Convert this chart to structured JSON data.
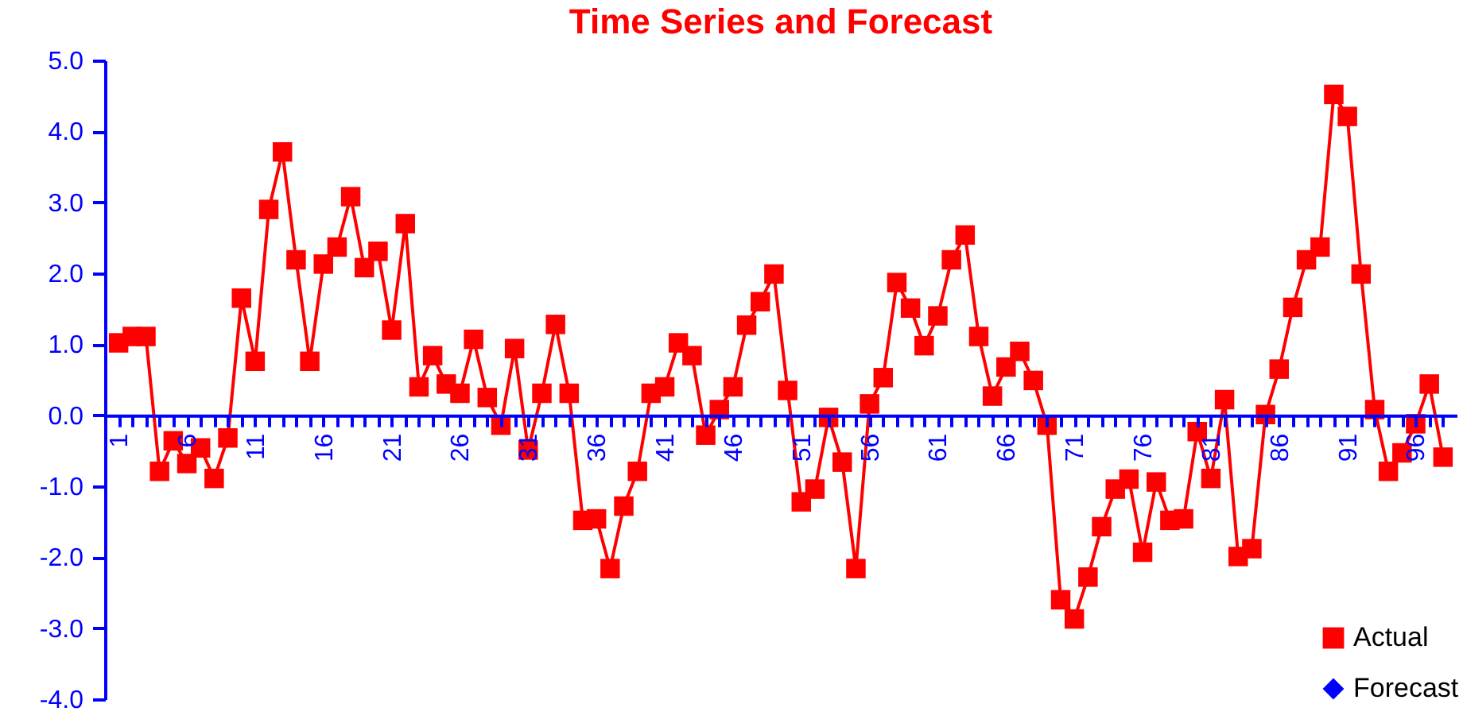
{
  "chart_data": {
    "type": "line",
    "title": "Time Series and Forecast",
    "categories": [
      "1",
      null,
      null,
      null,
      null,
      "6",
      null,
      null,
      null,
      null,
      "11",
      null,
      null,
      null,
      null,
      "16",
      null,
      null,
      null,
      null,
      "21",
      null,
      null,
      null,
      null,
      "26",
      null,
      null,
      null,
      null,
      "31",
      null,
      null,
      null,
      null,
      "36",
      null,
      null,
      null,
      null,
      "41",
      null,
      null,
      null,
      null,
      "46",
      null,
      null,
      null,
      null,
      "51",
      null,
      null,
      null,
      null,
      "56",
      null,
      null,
      null,
      null,
      "61",
      null,
      null,
      null,
      null,
      "66",
      null,
      null,
      null,
      null,
      "71",
      null,
      null,
      null,
      null,
      "76",
      null,
      null,
      null,
      null,
      "81",
      null,
      null,
      null,
      null,
      "86",
      null,
      null,
      null,
      null,
      "91",
      null,
      null,
      null,
      null,
      "96",
      null,
      null
    ],
    "series": [
      {
        "name": "Actual",
        "color": "#ff0000",
        "marker": "square",
        "values": [
          1.02,
          1.11,
          1.11,
          -0.79,
          -0.36,
          -0.68,
          -0.46,
          -0.89,
          -0.32,
          1.65,
          0.76,
          2.9,
          3.71,
          2.19,
          0.76,
          2.13,
          2.37,
          3.08,
          2.08,
          2.31,
          1.2,
          2.7,
          0.4,
          0.84,
          0.44,
          0.31,
          1.07,
          0.25,
          -0.14,
          0.94,
          -0.49,
          0.31,
          1.28,
          0.31,
          -1.48,
          -1.46,
          -2.16,
          -1.28,
          -0.79,
          0.31,
          0.4,
          1.02,
          0.84,
          -0.28,
          0.08,
          0.4,
          1.27,
          1.6,
          1.99,
          0.35,
          -1.22,
          -1.04,
          -0.03,
          -0.66,
          -2.16,
          0.16,
          0.53,
          1.87,
          1.51,
          0.98,
          1.4,
          2.19,
          2.54,
          1.11,
          0.27,
          0.68,
          0.9,
          0.49,
          -0.14,
          -2.6,
          -2.87,
          -2.28,
          -1.57,
          -1.04,
          -0.9,
          -1.93,
          -0.94,
          -1.48,
          -1.46,
          -0.23,
          -0.89,
          0.22,
          -1.99,
          -1.88,
          0.01,
          0.65,
          1.52,
          2.19,
          2.37,
          4.52,
          4.21,
          1.99,
          0.08,
          -0.79,
          -0.53,
          -0.12,
          0.44,
          -0.59
        ]
      },
      {
        "name": "Forecast",
        "color": "#0000ff",
        "marker": "diamond",
        "values": [
          null,
          null,
          null,
          null,
          null,
          null,
          null,
          null,
          null,
          null,
          null,
          null,
          null,
          null,
          null,
          null,
          null,
          null,
          null,
          null,
          null,
          null,
          null,
          null,
          null,
          null,
          null,
          null,
          null,
          null,
          null,
          null,
          null,
          null,
          null,
          null,
          null,
          null,
          null,
          null,
          null,
          null,
          null,
          null,
          null,
          null,
          null,
          null,
          null,
          null,
          null,
          null,
          null,
          null,
          null,
          null,
          null,
          null,
          null,
          null,
          null,
          null,
          null,
          null,
          null,
          null,
          null,
          null,
          null,
          null,
          null,
          null,
          null,
          null,
          null,
          null,
          null,
          null,
          null,
          null,
          null,
          null,
          null,
          null,
          null,
          null,
          null,
          null,
          null,
          null,
          null,
          null,
          null,
          null,
          null,
          null,
          null,
          null
        ]
      }
    ],
    "ylim": [
      -4,
      5
    ],
    "yticks": [
      {
        "value": -4,
        "label": "-4.0"
      },
      {
        "value": -3,
        "label": "-3.0"
      },
      {
        "value": -2,
        "label": "-2.0"
      },
      {
        "value": -1,
        "label": "-1.0"
      },
      {
        "value": 0,
        "label": "0.0"
      },
      {
        "value": 1,
        "label": "1.0"
      },
      {
        "value": 2,
        "label": "2.0"
      },
      {
        "value": 3,
        "label": "3.0"
      },
      {
        "value": 4,
        "label": "4.0"
      },
      {
        "value": 5,
        "label": "5.0"
      }
    ],
    "legend": "bottom right"
  }
}
